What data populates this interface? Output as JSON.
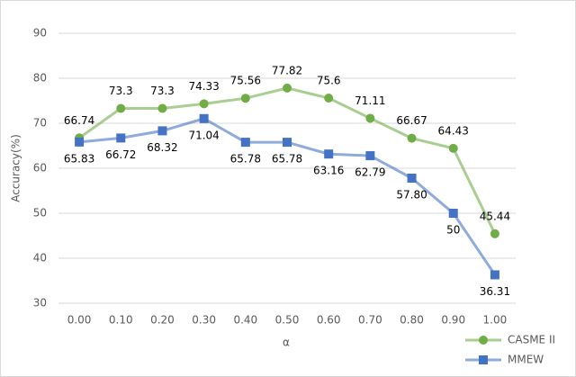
{
  "chart_data": {
    "type": "line",
    "x_label": "α",
    "y_label": "Accuracy(%)",
    "categories": [
      "0.00",
      "0.10",
      "0.20",
      "0.30",
      "0.40",
      "0.50",
      "0.60",
      "0.70",
      "0.80",
      "0.90",
      "1.00"
    ],
    "series": [
      {
        "name": "CASME II",
        "color": "#70ad47",
        "values": [
          66.74,
          73.3,
          73.3,
          74.33,
          75.56,
          77.82,
          75.6,
          71.11,
          66.67,
          64.43,
          45.44
        ]
      },
      {
        "name": "MMEW",
        "color": "#4472c4",
        "values": [
          65.83,
          66.72,
          68.32,
          71.04,
          65.78,
          65.78,
          63.16,
          62.79,
          57.8,
          50,
          36.31
        ],
        "value_labels": [
          "65.83",
          "66.72",
          "68.32",
          "71.04",
          "65.78",
          "65.78",
          "63.16",
          "62.79",
          "57.80",
          "50",
          "36.31"
        ]
      }
    ],
    "ylim": [
      30,
      90
    ],
    "yticks": [
      30,
      40,
      50,
      60,
      70,
      80,
      90
    ],
    "grid": true,
    "legend": "bottom-right"
  }
}
